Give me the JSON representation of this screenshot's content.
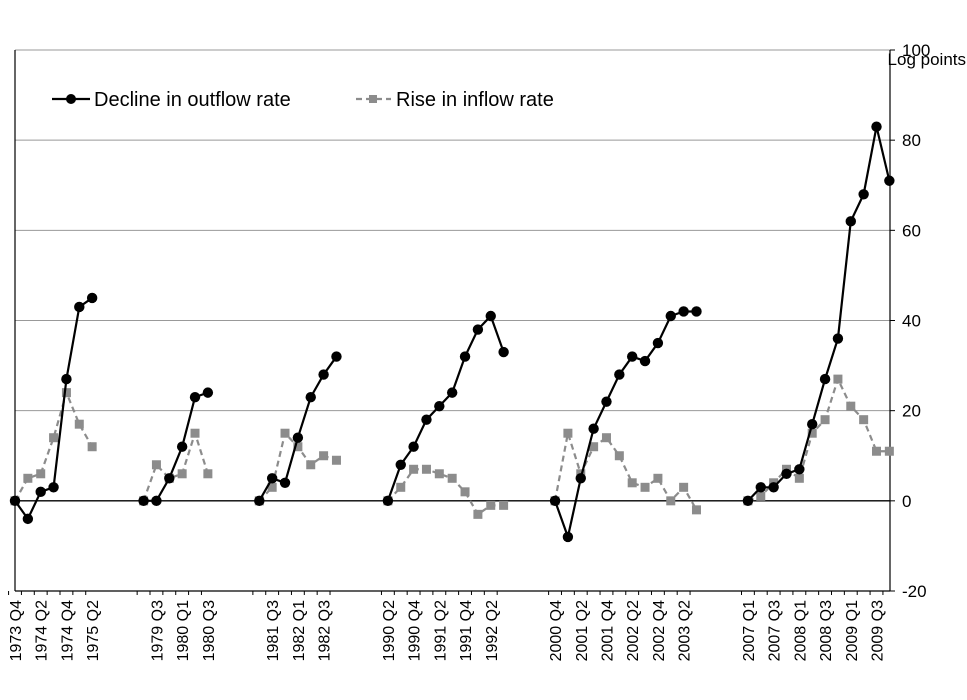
{
  "chart_data": {
    "type": "line",
    "ylabel": "Log points",
    "ylim": [
      -20,
      100
    ],
    "yticks": [
      -20,
      0,
      20,
      40,
      60,
      80,
      100
    ],
    "grid": true,
    "legend_position": "top-left",
    "colors": {
      "outflow": "#000000",
      "inflow": "#8c8c8c",
      "grid": "#999999"
    },
    "series": [
      {
        "name": "Decline in outflow rate",
        "style": "solid",
        "marker": "circle"
      },
      {
        "name": "Rise in inflow rate",
        "style": "dashed",
        "marker": "square"
      }
    ],
    "episodes": [
      {
        "x": [
          "1973 Q4",
          "1974 Q1",
          "1974 Q2",
          "1974 Q3",
          "1974 Q4",
          "1975 Q1",
          "1975 Q2"
        ],
        "outflow": [
          0,
          -4,
          2,
          3,
          27,
          43,
          45
        ],
        "inflow": [
          0,
          5,
          6,
          14,
          24,
          17,
          12
        ]
      },
      {
        "x": [
          "1979 Q2",
          "1979 Q3",
          "1979 Q4",
          "1980 Q1",
          "1980 Q2",
          "1980 Q3"
        ],
        "outflow": [
          0,
          0,
          5,
          12,
          23,
          24
        ],
        "inflow": [
          0,
          8,
          5,
          6,
          15,
          6
        ]
      },
      {
        "x": [
          "1981 Q2",
          "1981 Q3",
          "1981 Q4",
          "1982 Q1",
          "1982 Q2",
          "1982 Q3",
          "1982 Q4"
        ],
        "outflow": [
          0,
          5,
          4,
          14,
          23,
          28,
          32
        ],
        "inflow": [
          0,
          3,
          15,
          12,
          8,
          10,
          9
        ]
      },
      {
        "x": [
          "1990 Q2",
          "1990 Q3",
          "1990 Q4",
          "1991 Q1",
          "1991 Q2",
          "1991 Q3",
          "1991 Q4",
          "1992 Q1",
          "1992 Q2",
          "1992 Q3"
        ],
        "outflow": [
          0,
          8,
          12,
          18,
          21,
          24,
          32,
          38,
          41,
          33
        ],
        "inflow": [
          0,
          3,
          7,
          7,
          6,
          5,
          2,
          -3,
          -1,
          -1
        ]
      },
      {
        "x": [
          "2000 Q4",
          "2001 Q1",
          "2001 Q2",
          "2001 Q3",
          "2001 Q4",
          "2002 Q1",
          "2002 Q2",
          "2002 Q3",
          "2002 Q4",
          "2003 Q1",
          "2003 Q2",
          "2003 Q3"
        ],
        "outflow": [
          0,
          -8,
          5,
          16,
          22,
          28,
          32,
          31,
          35,
          41,
          42,
          42
        ],
        "inflow": [
          0,
          15,
          6,
          12,
          14,
          10,
          4,
          3,
          5,
          0,
          3,
          -2
        ]
      },
      {
        "x": [
          "2007 Q1",
          "2007 Q2",
          "2007 Q3",
          "2007 Q4",
          "2008 Q1",
          "2008 Q2",
          "2008 Q3",
          "2008 Q4",
          "2009 Q1",
          "2009 Q2",
          "2009 Q3",
          "2009 Q4"
        ],
        "outflow": [
          0,
          3,
          3,
          6,
          7,
          17,
          27,
          36,
          62,
          68,
          83,
          71
        ],
        "inflow": [
          0,
          1,
          4,
          7,
          5,
          15,
          18,
          27,
          21,
          18,
          11,
          11
        ]
      }
    ],
    "tick_labels": [
      "1973 Q4",
      "1974 Q2",
      "1974 Q4",
      "1975 Q2",
      "1979 Q3",
      "1980 Q1",
      "1980 Q3",
      "1981 Q3",
      "1982 Q1",
      "1982 Q3",
      "1990 Q2",
      "1990 Q4",
      "1991 Q2",
      "1991 Q4",
      "1992 Q2",
      "2000 Q4",
      "2001 Q2",
      "2001 Q4",
      "2002 Q2",
      "2002 Q4",
      "2003 Q2",
      "2007 Q1",
      "2007 Q3",
      "2008 Q1",
      "2008 Q3",
      "2009 Q1",
      "2009 Q3"
    ]
  }
}
